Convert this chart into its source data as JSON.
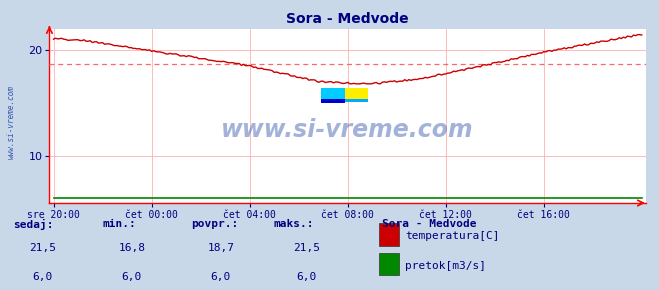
{
  "title": "Sora - Medvode",
  "title_color": "#000080",
  "bg_color": "#c8d8e8",
  "plot_bg_color": "#ffffff",
  "grid_color": "#ffb0b0",
  "axis_color": "#ff0000",
  "temp_line_color": "#cc0000",
  "flow_line_color": "#008800",
  "avg_line_color": "#ff6666",
  "watermark_text": "www.si-vreme.com",
  "watermark_color": "#3355aa",
  "sidebar_text": "www.si-vreme.com",
  "sidebar_color": "#3355aa",
  "ylim": [
    5.5,
    22.0
  ],
  "yticks": [
    10,
    20
  ],
  "xtick_labels": [
    "sre 20:00",
    "čet 00:00",
    "čet 04:00",
    "čet 08:00",
    "čet 12:00",
    "čet 16:00"
  ],
  "xtick_positions": [
    0,
    240,
    480,
    720,
    960,
    1200
  ],
  "avg_value": 18.7,
  "temp_min": 16.8,
  "temp_max": 21.5,
  "flow_value": 6.0,
  "legend_title": "Sora - Medvode",
  "legend_items": [
    {
      "label": "temperatura[C]",
      "color": "#cc0000"
    },
    {
      "label": "pretok[m3/s]",
      "color": "#008800"
    }
  ],
  "stats_labels": [
    "sedaj:",
    "min.:",
    "povpr.:",
    "maks.:"
  ],
  "stats_temp": [
    "21,5",
    "16,8",
    "18,7",
    "21,5"
  ],
  "stats_flow": [
    "6,0",
    "6,0",
    "6,0",
    "6,0"
  ]
}
